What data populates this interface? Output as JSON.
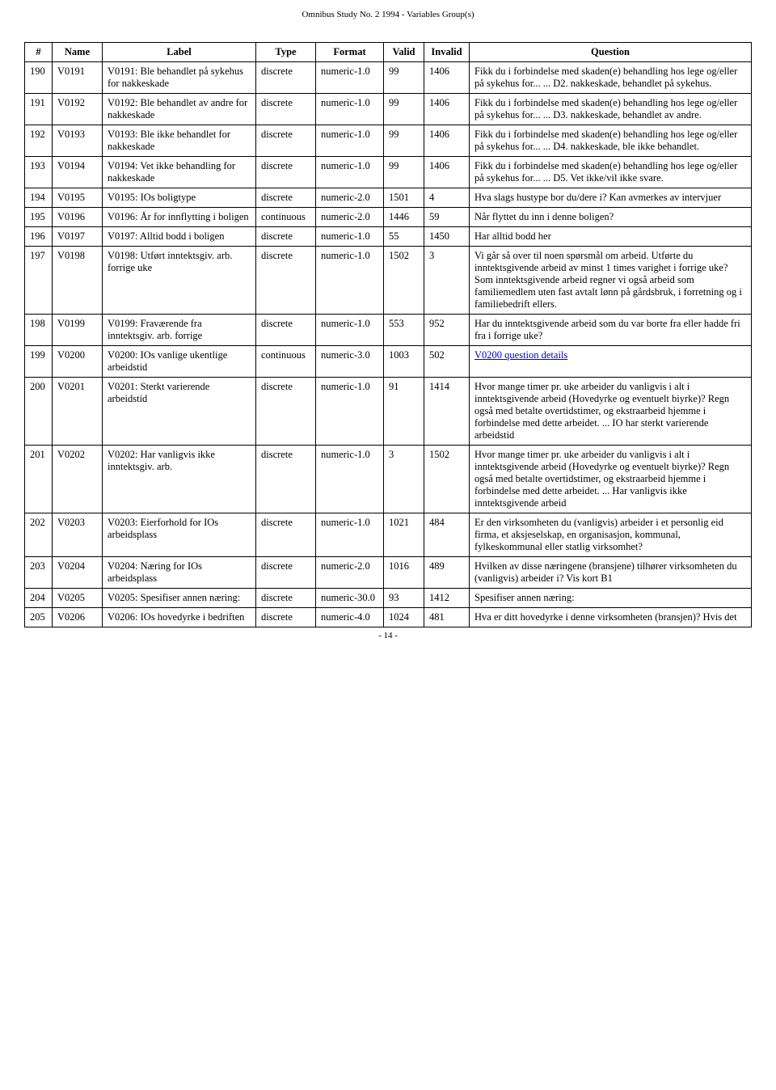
{
  "doc_title": "Omnibus Study No. 2 1994 - Variables Group(s)",
  "footer": "- 14 -",
  "headers": {
    "num": "#",
    "name": "Name",
    "label": "Label",
    "type": "Type",
    "format": "Format",
    "valid": "Valid",
    "invalid": "Invalid",
    "question": "Question"
  },
  "rows": [
    {
      "num": "190",
      "name": "V0191",
      "label": "V0191: Ble behandlet på sykehus for nakkeskade",
      "type": "discrete",
      "format": "numeric-1.0",
      "valid": "99",
      "invalid": "1406",
      "question": "Fikk du i forbindelse med skaden(e) behandling hos lege og/eller på sykehus for... ... D2. nakkeskade, behandlet på sykehus."
    },
    {
      "num": "191",
      "name": "V0192",
      "label": "V0192: Ble behandlet av andre for nakkeskade",
      "type": "discrete",
      "format": "numeric-1.0",
      "valid": "99",
      "invalid": "1406",
      "question": "Fikk du i forbindelse med skaden(e) behandling hos lege og/eller på sykehus for... ... D3. nakkeskade, behandlet av andre."
    },
    {
      "num": "192",
      "name": "V0193",
      "label": "V0193: Ble ikke behandlet for nakkeskade",
      "type": "discrete",
      "format": "numeric-1.0",
      "valid": "99",
      "invalid": "1406",
      "question": "Fikk du i forbindelse med skaden(e) behandling hos lege og/eller på sykehus for... ... D4. nakkeskade, ble ikke behandlet."
    },
    {
      "num": "193",
      "name": "V0194",
      "label": "V0194: Vet ikke behandling for nakkeskade",
      "type": "discrete",
      "format": "numeric-1.0",
      "valid": "99",
      "invalid": "1406",
      "question": "Fikk du i forbindelse med skaden(e) behandling hos lege og/eller på sykehus for... ... D5. Vet ikke/vil ikke svare."
    },
    {
      "num": "194",
      "name": "V0195",
      "label": "V0195: IOs boligtype",
      "type": "discrete",
      "format": "numeric-2.0",
      "valid": "1501",
      "invalid": "4",
      "question": "Hva slags hustype bor du/dere i? Kan avmerkes av intervjuer"
    },
    {
      "num": "195",
      "name": "V0196",
      "label": "V0196: År for innflytting i boligen",
      "type": "continuous",
      "format": "numeric-2.0",
      "valid": "1446",
      "invalid": "59",
      "question": "Når flyttet du inn i denne boligen?"
    },
    {
      "num": "196",
      "name": "V0197",
      "label": "V0197: Alltid bodd i boligen",
      "type": "discrete",
      "format": "numeric-1.0",
      "valid": "55",
      "invalid": "1450",
      "question": "Har alltid bodd her"
    },
    {
      "num": "197",
      "name": "V0198",
      "label": "V0198: Utført inntektsgiv. arb. forrige uke",
      "type": "discrete",
      "format": "numeric-1.0",
      "valid": "1502",
      "invalid": "3",
      "question": "Vi går så over til noen spørsmål om arbeid. Utførte du inntektsgivende arbeid av minst 1 times varighet i forrige uke? Som inntektsgivende arbeid regner vi også arbeid som familiemedlem uten fast avtalt lønn på gårdsbruk, i forretning og i familiebedrift ellers."
    },
    {
      "num": "198",
      "name": "V0199",
      "label": "V0199: Fraværende fra inntektsgiv. arb. forrige",
      "type": "discrete",
      "format": "numeric-1.0",
      "valid": "553",
      "invalid": "952",
      "question": "Har du inntektsgivende arbeid som du var borte fra eller hadde fri fra i forrige uke?"
    },
    {
      "num": "199",
      "name": "V0200",
      "label": "V0200: IOs vanlige ukentlige arbeidstid",
      "type": "continuous",
      "format": "numeric-3.0",
      "valid": "1003",
      "invalid": "502",
      "question": "",
      "question_link": "V0200 question details"
    },
    {
      "num": "200",
      "name": "V0201",
      "label": "V0201: Sterkt varierende arbeidstid",
      "type": "discrete",
      "format": "numeric-1.0",
      "valid": "91",
      "invalid": "1414",
      "question": "Hvor mange timer pr. uke arbeider du vanligvis i alt i inntektsgivende arbeid (Hovedyrke og eventuelt biyrke)? Regn også med betalte overtidstimer, og ekstraarbeid hjemme i forbindelse med dette arbeidet. ... IO har sterkt varierende arbeidstid"
    },
    {
      "num": "201",
      "name": "V0202",
      "label": "V0202: Har vanligvis ikke inntektsgiv. arb.",
      "type": "discrete",
      "format": "numeric-1.0",
      "valid": "3",
      "invalid": "1502",
      "question": "Hvor mange timer pr. uke arbeider du vanligvis i alt i inntektsgivende arbeid (Hovedyrke og eventuelt biyrke)? Regn også med betalte overtidstimer, og ekstraarbeid hjemme i forbindelse med dette arbeidet. ... Har vanligvis ikke inntektsgivende arbeid"
    },
    {
      "num": "202",
      "name": "V0203",
      "label": "V0203: Eierforhold for IOs arbeidsplass",
      "type": "discrete",
      "format": "numeric-1.0",
      "valid": "1021",
      "invalid": "484",
      "question": "Er den virksomheten du (vanligvis) arbeider i et personlig eid firma, et aksjeselskap, en organisasjon, kommunal, fylkeskommunal eller statlig virksomhet?"
    },
    {
      "num": "203",
      "name": "V0204",
      "label": "V0204: Næring for IOs arbeidsplass",
      "type": "discrete",
      "format": "numeric-2.0",
      "valid": "1016",
      "invalid": "489",
      "question": "Hvilken av disse næringene (bransjene) tilhører virksomheten du (vanligvis) arbeider i? Vis kort B1"
    },
    {
      "num": "204",
      "name": "V0205",
      "label": "V0205: Spesifiser annen næring:",
      "type": "discrete",
      "format": "numeric-30.0",
      "valid": "93",
      "invalid": "1412",
      "question": "Spesifiser annen næring:"
    },
    {
      "num": "205",
      "name": "V0206",
      "label": "V0206: IOs hovedyrke i bedriften",
      "type": "discrete",
      "format": "numeric-4.0",
      "valid": "1024",
      "invalid": "481",
      "question": "Hva er ditt hovedyrke i denne virksomheten (bransjen)? Hvis det"
    }
  ]
}
